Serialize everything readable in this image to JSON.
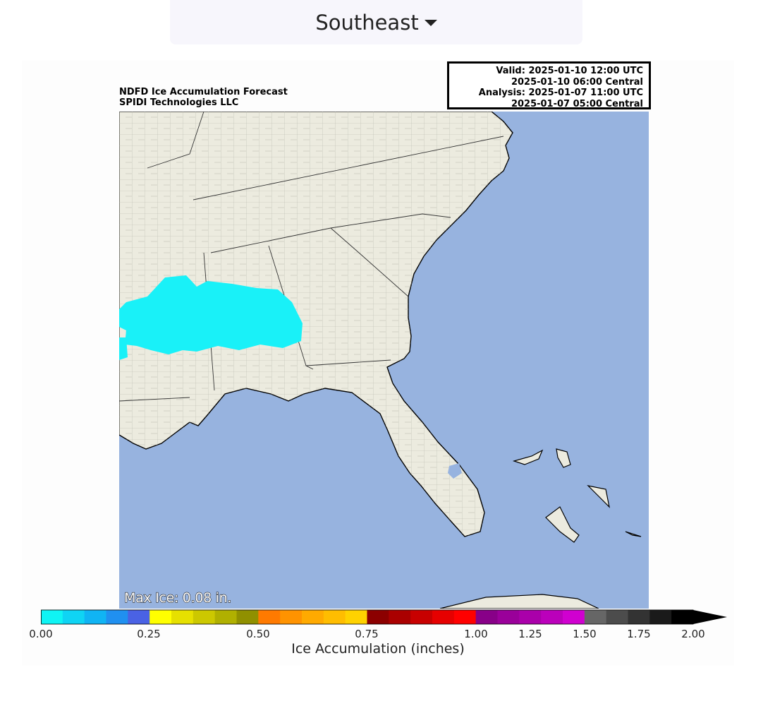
{
  "region_select": {
    "label": "Southeast"
  },
  "map": {
    "title_lines": [
      "NDFD Ice Accumulation Forecast",
      "SPIDI Technologies LLC"
    ],
    "valid_lines": [
      "Valid: 2025-01-10 12:00 UTC",
      "2025-01-10 06:00 Central",
      "Analysis: 2025-01-07 11:00 UTC",
      "2025-01-07 05:00 Central"
    ],
    "max_ice": "Max Ice: 0.08 in.",
    "colors": {
      "ocean": "#97b3df",
      "land": "#ecebdf",
      "ice": "#19f1f8"
    }
  },
  "colorbar": {
    "label": "Ice Accumulation (inches)",
    "ticks": [
      "0.00",
      "0.25",
      "0.50",
      "0.75",
      "1.00",
      "1.25",
      "1.50",
      "1.75",
      "2.00"
    ],
    "colors": [
      "#0ff4f4",
      "#0fd4f4",
      "#10b4f4",
      "#2090f0",
      "#4a62e4",
      "#ffff00",
      "#e6e000",
      "#ccc800",
      "#b0b000",
      "#909000",
      "#ff7a00",
      "#ff9300",
      "#ffaa00",
      "#ffbd00",
      "#ffd200",
      "#8c0000",
      "#aa0000",
      "#c80000",
      "#e60000",
      "#ff0000",
      "#880088",
      "#9a009a",
      "#aa00aa",
      "#bb00bb",
      "#d000d0",
      "#666666",
      "#4c4c4c",
      "#333333",
      "#1a1a1a",
      "#000000"
    ]
  }
}
